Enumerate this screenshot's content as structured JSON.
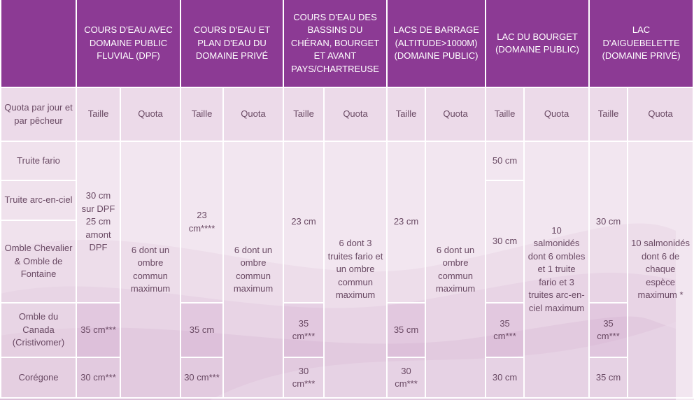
{
  "header": {
    "columns": [
      "COURS D'EAU AVEC DOMAINE PUBLIC FLUVIAL (DPF)",
      "COURS D'EAU ET PLAN D'EAU DU DOMAINE PRIVÉ",
      "COURS D'EAU DES BASSINS DU CHÉRAN, BOURGET ET AVANT PAYS/CHARTREUSE",
      "LACS DE BARRAGE (ALTITUDE>1000M) (DOMAINE PUBLIC)",
      "LAC DU BOURGET (DOMAINE PUBLIC)",
      "LAC D'AIGUEBELETTE (DOMAINE PRIVÉ)"
    ]
  },
  "subheader": {
    "row_label": "Quota par jour et par pêcheur",
    "taille": "Taille",
    "quota": "Quota"
  },
  "rows": {
    "labels": [
      "Truite fario",
      "Truite arc-en-ciel",
      "Omble Chevalier & Omble de Fontaine",
      "Omble du Canada (Cristivomer)",
      "Corégone"
    ]
  },
  "cells": {
    "dpf_taille_main": "30 cm sur DPF 25 cm amont DPF",
    "dpf_taille_canada": "35 cm***",
    "dpf_taille_coregone": "30 cm***",
    "dpf_quota": "6 dont un ombre commun maximum",
    "prive_taille_main": "23 cm****",
    "prive_taille_canada": "35 cm",
    "prive_taille_coregone": "30 cm***",
    "prive_quota": "6 dont un ombre commun maximum",
    "cheran_taille_main": "23 cm",
    "cheran_taille_canada": "35 cm***",
    "cheran_taille_coregone": "30 cm***",
    "cheran_quota": "6 dont 3 truites fario et un ombre commun maximum",
    "barrage_taille_main": "23 cm",
    "barrage_taille_canada": "35 cm",
    "barrage_taille_coregone": "30 cm***",
    "barrage_quota": "6 dont un ombre commun maximum",
    "bourget_taille_fario": "50 cm",
    "bourget_taille_mid": "30 cm",
    "bourget_taille_canada": "35 cm***",
    "bourget_taille_coregone": "30 cm",
    "bourget_quota": "10 salmonidés dont 6 ombles et 1 truite fario et 3 truites arc-en-ciel maximum",
    "aigue_taille_main": "30 cm",
    "aigue_taille_canada": "35 cm***",
    "aigue_taille_coregone": "35 cm",
    "aigue_quota": "10 salmonidés dont 6 de chaque espèce maximum *"
  },
  "colors": {
    "header_bg": "#8c3a94",
    "header_text": "#ffffff",
    "body_text": "#6a4a64",
    "wave": "#c9a3c8"
  }
}
